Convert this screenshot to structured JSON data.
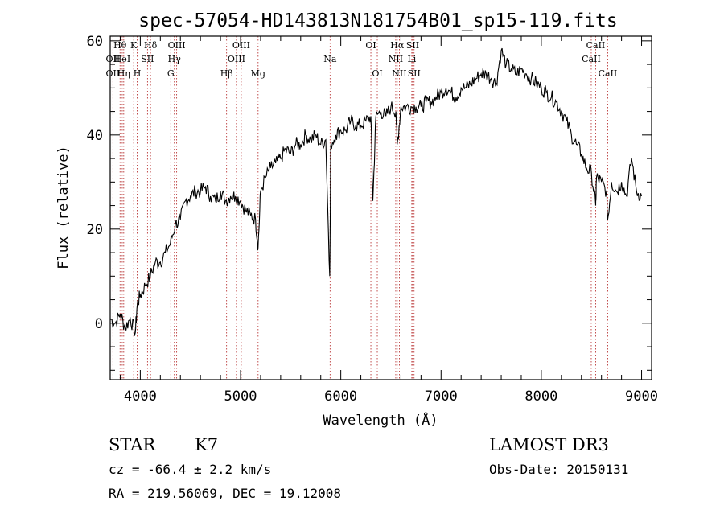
{
  "chart_data": {
    "type": "line",
    "title": "spec-57054-HD143813N181754B01_sp15-119.fits",
    "xlabel": "Wavelength (Å)",
    "ylabel": "Flux (relative)",
    "xlim": [
      3700,
      9100
    ],
    "ylim": [
      -12,
      61
    ],
    "xticks": [
      4000,
      5000,
      6000,
      7000,
      8000,
      9000
    ],
    "yticks": [
      0,
      20,
      40,
      60
    ],
    "grid": false,
    "series": [
      {
        "color": "#000000",
        "x": [
          3700,
          3750,
          3800,
          3850,
          3900,
          3950,
          3970,
          4000,
          4050,
          4100,
          4150,
          4200,
          4250,
          4300,
          4350,
          4400,
          4450,
          4500,
          4550,
          4600,
          4650,
          4700,
          4750,
          4800,
          4850,
          4900,
          4950,
          5000,
          5050,
          5100,
          5150,
          5175,
          5200,
          5250,
          5300,
          5350,
          5400,
          5450,
          5500,
          5550,
          5600,
          5650,
          5700,
          5750,
          5800,
          5850,
          5890,
          5900,
          5950,
          6000,
          6050,
          6100,
          6150,
          6200,
          6250,
          6300,
          6320,
          6350,
          6400,
          6450,
          6500,
          6550,
          6563,
          6600,
          6650,
          6700,
          6750,
          6800,
          6850,
          6900,
          6950,
          7000,
          7050,
          7100,
          7150,
          7200,
          7250,
          7300,
          7350,
          7400,
          7450,
          7500,
          7550,
          7600,
          7650,
          7700,
          7750,
          7800,
          7850,
          7900,
          7950,
          8000,
          8050,
          8100,
          8150,
          8200,
          8250,
          8300,
          8350,
          8400,
          8450,
          8500,
          8542,
          8550,
          8600,
          8650,
          8662,
          8700,
          8750,
          8800,
          8850,
          8900,
          8950,
          9000
        ],
        "y": [
          1,
          0,
          2,
          -1,
          1,
          -2,
          4,
          6,
          8,
          10,
          13,
          13,
          15,
          17,
          21,
          22,
          26,
          27,
          28,
          28,
          29,
          27,
          26,
          28,
          26,
          27,
          27,
          26,
          24,
          23,
          22,
          16,
          28,
          31,
          33,
          34,
          35,
          37,
          36,
          38,
          38,
          40,
          39,
          40,
          38,
          39,
          10,
          38,
          40,
          41,
          41,
          43,
          42,
          42,
          43,
          44,
          26,
          44,
          45,
          44,
          46,
          45,
          38,
          46,
          46,
          46,
          46,
          46,
          47,
          47,
          48,
          49,
          50,
          49,
          48,
          50,
          50,
          51,
          52,
          53,
          53,
          52,
          51,
          58,
          55,
          54,
          53,
          54,
          53,
          52,
          51,
          50,
          49,
          48,
          47,
          45,
          43,
          40,
          38,
          36,
          33,
          32,
          25,
          31,
          30,
          28,
          22,
          30,
          28,
          30,
          27,
          35,
          28,
          27
        ]
      }
    ],
    "spectral_lines": [
      {
        "label": "Hθ",
        "x": 3798,
        "row": 0
      },
      {
        "label": "OII",
        "x": 3727,
        "row": 1
      },
      {
        "label": "OII",
        "x": 3727,
        "row": 2
      },
      {
        "label": "HeI",
        "x": 3820,
        "row": 1
      },
      {
        "label": "Hη",
        "x": 3835,
        "row": 2
      },
      {
        "label": "K",
        "x": 3934,
        "row": 0
      },
      {
        "label": "SII",
        "x": 4072,
        "row": 1
      },
      {
        "label": "H",
        "x": 3969,
        "row": 2
      },
      {
        "label": "Hδ",
        "x": 4102,
        "row": 0
      },
      {
        "label": "OIII",
        "x": 4363,
        "row": 0
      },
      {
        "label": "Hγ",
        "x": 4340,
        "row": 1
      },
      {
        "label": "G",
        "x": 4304,
        "row": 2
      },
      {
        "label": "OIII",
        "x": 5007,
        "row": 0
      },
      {
        "label": "OIII",
        "x": 4959,
        "row": 1
      },
      {
        "label": "Hβ",
        "x": 4861,
        "row": 2
      },
      {
        "label": "Mg",
        "x": 5175,
        "row": 2
      },
      {
        "label": "Na",
        "x": 5893,
        "row": 1
      },
      {
        "label": "OI",
        "x": 6300,
        "row": 0
      },
      {
        "label": "OI",
        "x": 6364,
        "row": 2
      },
      {
        "label": "Hα",
        "x": 6563,
        "row": 0
      },
      {
        "label": "SII",
        "x": 6717,
        "row": 0
      },
      {
        "label": "NII",
        "x": 6548,
        "row": 1
      },
      {
        "label": "Li",
        "x": 6708,
        "row": 1
      },
      {
        "label": "NII",
        "x": 6584,
        "row": 2
      },
      {
        "label": "SII",
        "x": 6731,
        "row": 2
      },
      {
        "label": "CaII",
        "x": 8542,
        "row": 0
      },
      {
        "label": "CaII",
        "x": 8498,
        "row": 1
      },
      {
        "label": "CaII",
        "x": 8662,
        "row": 2
      }
    ]
  },
  "info": {
    "class": "STAR",
    "subclass": "K7",
    "survey": "LAMOST DR3",
    "redshift": "cz = -66.4 ± 2.2 km/s",
    "obs_date": "Obs-Date: 20150131",
    "coords": "RA = 219.56069, DEC =  19.12008"
  }
}
